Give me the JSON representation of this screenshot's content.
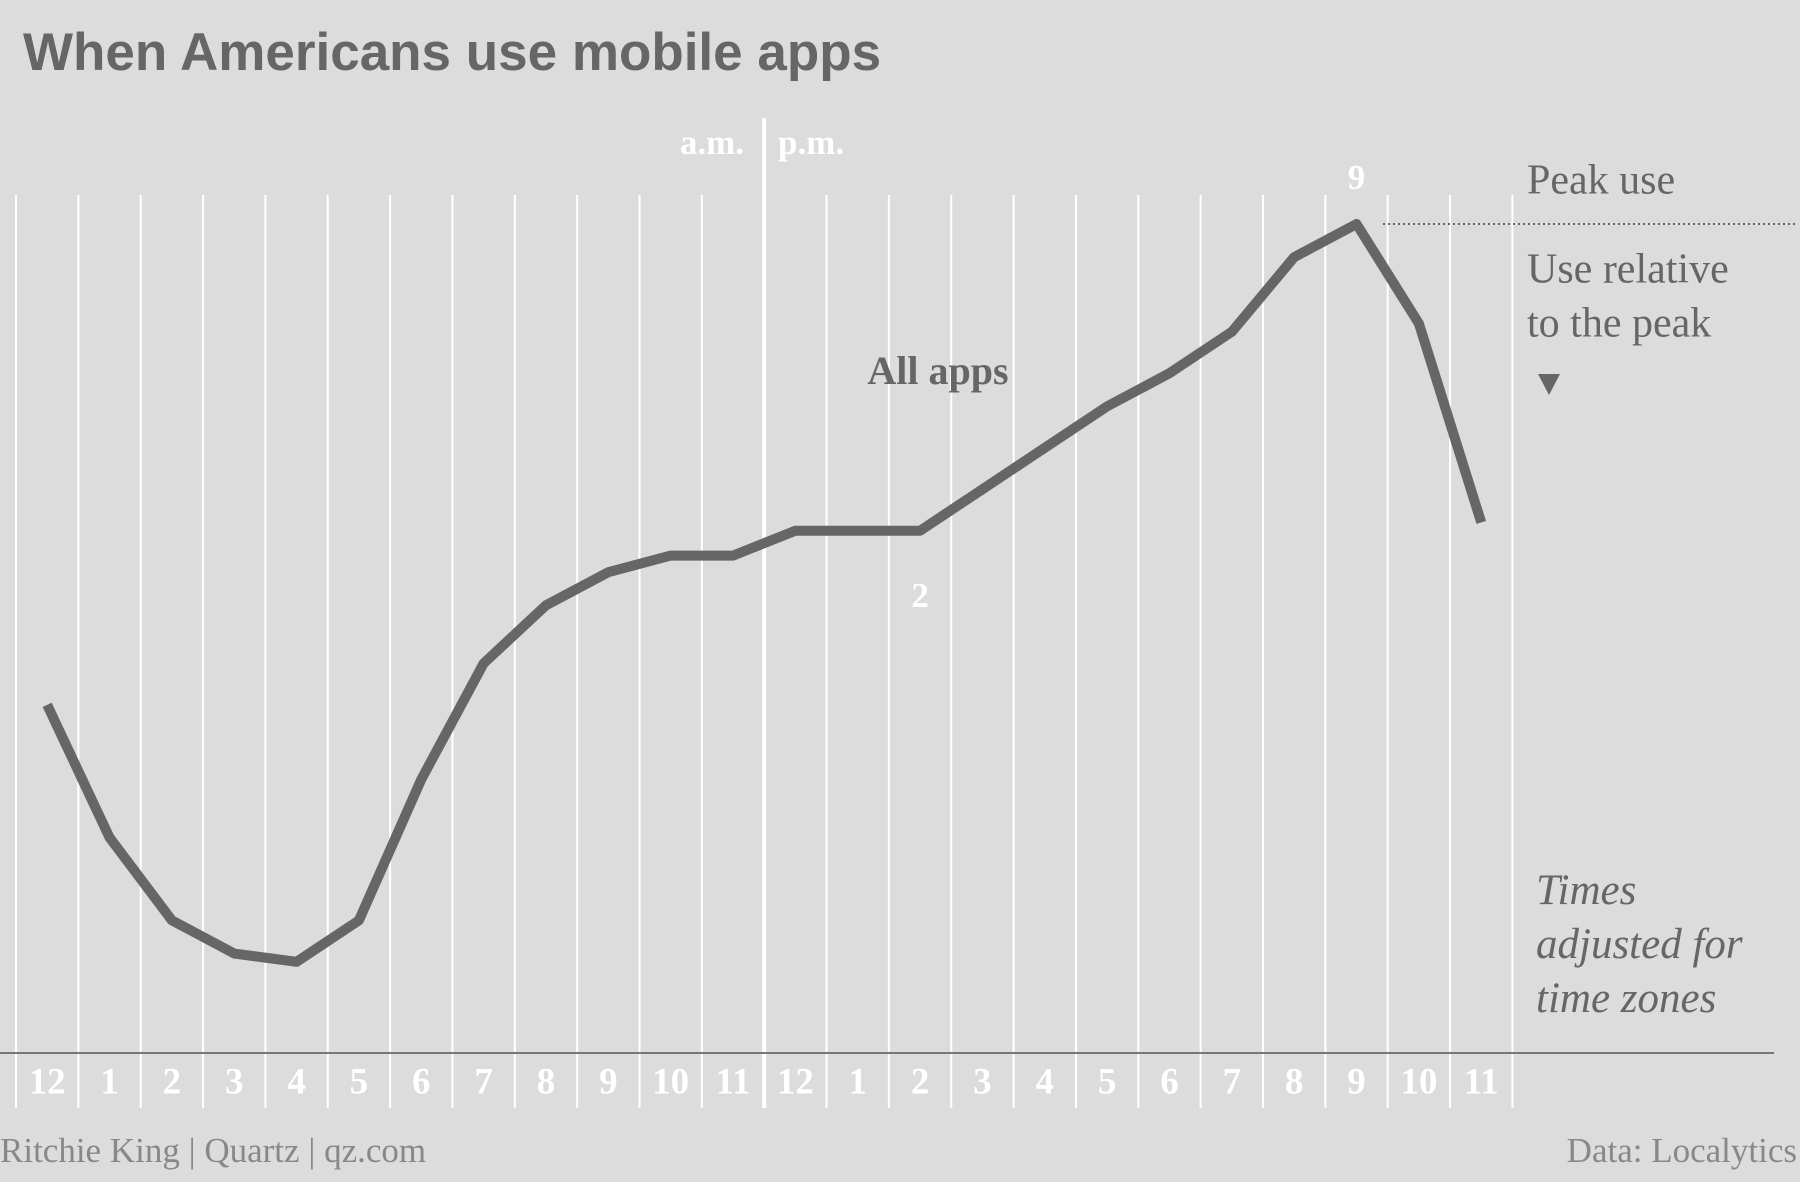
{
  "chart_data": {
    "type": "line",
    "title": "When Americans use mobile apps",
    "categories": [
      "12",
      "1",
      "2",
      "3",
      "4",
      "5",
      "6",
      "7",
      "8",
      "9",
      "10",
      "11",
      "12",
      "1",
      "2",
      "3",
      "4",
      "5",
      "6",
      "7",
      "8",
      "9",
      "10",
      "11"
    ],
    "series": [
      {
        "name": "All apps",
        "color": "#666666",
        "values": [
          42,
          26,
          16,
          12,
          11,
          16,
          33,
          47,
          54,
          58,
          60,
          60,
          63,
          63,
          63,
          68,
          73,
          78,
          82,
          87,
          96,
          100,
          88,
          64
        ]
      }
    ],
    "ylim": [
      0,
      100
    ],
    "am_label": "a.m.",
    "pm_label": "p.m.",
    "annotations": [
      "9",
      "2"
    ],
    "peak_label": "Peak use",
    "relative_label": [
      "Use relative",
      "to the peak"
    ],
    "note": [
      "Times",
      "adjusted for",
      "time zones"
    ],
    "source_left": "Ritchie King | Quartz | qz.com",
    "source_right": "Data: Localytics"
  }
}
